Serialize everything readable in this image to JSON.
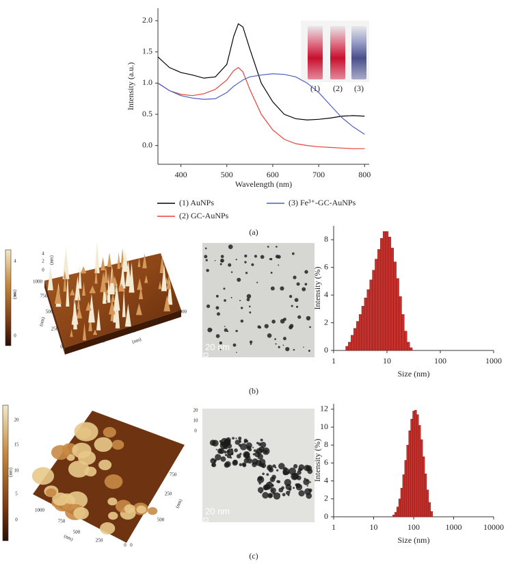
{
  "chart_data": [
    {
      "type": "line",
      "x": [
        350,
        375,
        400,
        425,
        450,
        475,
        500,
        515,
        525,
        535,
        550,
        575,
        600,
        625,
        650,
        675,
        700,
        725,
        750,
        775,
        800
      ],
      "series": [
        {
          "name": "(1) AuNPs",
          "color": "#000000",
          "values": [
            1.42,
            1.25,
            1.17,
            1.13,
            1.08,
            1.1,
            1.3,
            1.75,
            1.95,
            1.9,
            1.55,
            1.0,
            0.7,
            0.5,
            0.43,
            0.41,
            0.42,
            0.44,
            0.47,
            0.48,
            0.47
          ]
        },
        {
          "name": "(2) GC-AuNPs",
          "color": "#e8403a",
          "values": [
            1.0,
            0.88,
            0.82,
            0.8,
            0.83,
            0.9,
            1.05,
            1.2,
            1.25,
            1.18,
            0.9,
            0.5,
            0.25,
            0.1,
            0.03,
            0.0,
            -0.02,
            -0.03,
            -0.04,
            -0.05,
            -0.05
          ]
        },
        {
          "name": "(3) Fe³⁺-GC-AuNPs",
          "color": "#4a5fc0",
          "values": [
            1.0,
            0.88,
            0.8,
            0.76,
            0.74,
            0.75,
            0.85,
            0.95,
            1.0,
            1.05,
            1.1,
            1.13,
            1.15,
            1.14,
            1.1,
            1.0,
            0.85,
            0.65,
            0.45,
            0.3,
            0.18
          ]
        }
      ],
      "xlabel": "Wavelength (nm)",
      "ylabel": "Intensity (a.u.)",
      "xlim": [
        350,
        810
      ],
      "xticks": [
        400,
        500,
        600,
        700,
        800
      ],
      "ylim": [
        -0.3,
        2.2
      ],
      "yticks": [
        {
          "value": 0,
          "label": "0.0"
        },
        {
          "value": 0.5,
          "label": "0.5"
        },
        {
          "value": 1,
          "label": "1.0"
        },
        {
          "value": 1.5,
          "label": "1.5"
        },
        {
          "value": 2,
          "label": "2.0"
        }
      ]
    },
    {
      "type": "histogram",
      "bins": [
        1.68,
        1.88,
        2.11,
        2.37,
        2.66,
        2.99,
        3.35,
        3.76,
        4.22,
        4.73,
        5.31,
        5.96,
        6.68,
        7.5,
        8.41,
        9.44,
        10.59,
        11.89,
        13.34,
        14.96,
        16.79,
        18.84,
        21.13,
        23.71,
        26.61,
        29.85
      ],
      "values": [
        0.3,
        0.6,
        1.1,
        1.6,
        2.1,
        2.6,
        3.2,
        3.8,
        4.4,
        5.1,
        5.8,
        6.6,
        7.3,
        8.1,
        8.6,
        8.6,
        8.2,
        7.4,
        6.4,
        5.2,
        3.9,
        2.6,
        1.4,
        0.6,
        0.2
      ],
      "color": "#c4302b",
      "xlabel": "Size (nm)",
      "ylabel": "Intensity (%)",
      "log_x": true,
      "xlim": [
        1,
        1000
      ],
      "xticks": [
        1,
        10,
        100,
        1000
      ],
      "ylim": [
        0,
        9
      ],
      "yticks": [
        0,
        2,
        4,
        6,
        8
      ]
    },
    {
      "type": "histogram",
      "bins": [
        29.85,
        33.5,
        37.58,
        42.17,
        47.32,
        53.09,
        59.57,
        66.83,
        74.99,
        84.14,
        94.41,
        105.93,
        118.85,
        133.35,
        149.62,
        167.88,
        188.36,
        211.35,
        237.14,
        266.07,
        298.54
      ],
      "values": [
        0.2,
        0.5,
        1.1,
        2.0,
        3.2,
        4.7,
        6.3,
        8.0,
        9.6,
        10.9,
        11.8,
        11.9,
        11.4,
        10.2,
        8.6,
        6.7,
        4.8,
        3.0,
        1.6,
        0.6
      ],
      "color": "#c4302b",
      "xlabel": "Size (nm)",
      "ylabel": "Intensity (%)",
      "log_x": true,
      "xlim": [
        1,
        10000
      ],
      "xticks": [
        1,
        10,
        100,
        1000,
        10000
      ],
      "ylim": [
        0,
        12.6
      ],
      "yticks": [
        0,
        2,
        4,
        6,
        8,
        10,
        12
      ]
    }
  ],
  "figure_labels": [
    "(a)",
    "(b)",
    "(c)"
  ],
  "vial_labels": [
    "(1)",
    "(2)",
    "(3)"
  ],
  "afm": [
    {
      "colorbar_ticks": [
        "4",
        "2",
        "0"
      ],
      "colorbar_unit": "(nm)",
      "z_ticks": [
        "4",
        "2",
        "0"
      ],
      "z_unit": "(nm)",
      "y_ticks": [
        "1000",
        "750",
        "500",
        "250",
        "0"
      ],
      "y_unit": "(nm)",
      "x_ticks": [
        "0",
        "250",
        "500",
        "750",
        "1000"
      ],
      "x_unit": "(nm)"
    },
    {
      "colorbar_ticks": [
        "20",
        "15",
        "10",
        "5",
        "0"
      ],
      "colorbar_unit": "(nm)",
      "z_ticks": [
        "20",
        "10",
        "0"
      ],
      "y_ticks": [
        "1000",
        "750",
        "500",
        "250",
        "0"
      ],
      "y_unit": "(nm)",
      "x_ticks": [
        "0",
        "250",
        "500",
        "750"
      ],
      "x_unit": "(nm)"
    }
  ],
  "tem": [
    {
      "scale_bar": "20 nm"
    },
    {
      "scale_bar": "20 nm"
    }
  ]
}
